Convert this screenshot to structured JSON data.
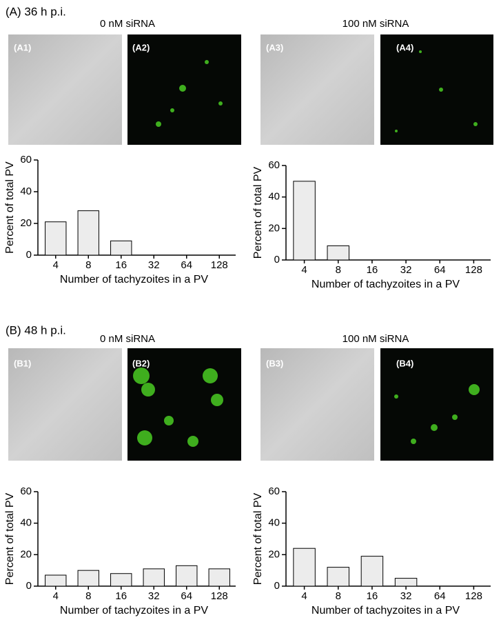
{
  "panels": [
    {
      "label": "(A) 36 h p.i.",
      "images": [
        "(A1)",
        "(A2)",
        "(A3)",
        "(A4)"
      ]
    },
    {
      "label": "(B) 48 h p.i.",
      "images": [
        "(B1)",
        "(B2)",
        "(B3)",
        "(B4)"
      ]
    }
  ],
  "chart_data": [
    {
      "type": "bar",
      "title": "0 nM siRNA",
      "categories": [
        "4",
        "8",
        "16",
        "32",
        "64",
        "128"
      ],
      "values": [
        21,
        28,
        9,
        0,
        0,
        0
      ],
      "color": "#ececec",
      "ylim": [
        0,
        60
      ],
      "yticks": [
        0,
        20,
        40,
        60
      ],
      "xlabel": "Number of tachyzoites in a PV",
      "ylabel": "Percent of total PV"
    },
    {
      "type": "bar",
      "title": "100 nM siRNA",
      "categories": [
        "4",
        "8",
        "16",
        "32",
        "64",
        "128"
      ],
      "values": [
        50,
        9,
        0,
        0,
        0,
        0
      ],
      "color": "#ececec",
      "ylim": [
        0,
        60
      ],
      "yticks": [
        0,
        20,
        40,
        60
      ],
      "xlabel": "Number of tachyzoites in a PV",
      "ylabel": "Percent of total PV"
    },
    {
      "type": "bar",
      "title": "0 nM siRNA",
      "categories": [
        "4",
        "8",
        "16",
        "32",
        "64",
        "128"
      ],
      "values": [
        7,
        10,
        8,
        11,
        13,
        11
      ],
      "color": "#ececec",
      "ylim": [
        0,
        60
      ],
      "yticks": [
        0,
        20,
        40,
        60
      ],
      "xlabel": "Number of tachyzoites in a PV",
      "ylabel": "Percent of total PV"
    },
    {
      "type": "bar",
      "title": "100 nM siRNA",
      "categories": [
        "4",
        "8",
        "16",
        "32",
        "64",
        "128"
      ],
      "values": [
        24,
        12,
        19,
        5,
        0,
        0
      ],
      "color": "#ececec",
      "ylim": [
        0,
        60
      ],
      "yticks": [
        0,
        20,
        40,
        60
      ],
      "xlabel": "Number of tachyzoites in a PV",
      "ylabel": "Percent of total PV"
    }
  ]
}
